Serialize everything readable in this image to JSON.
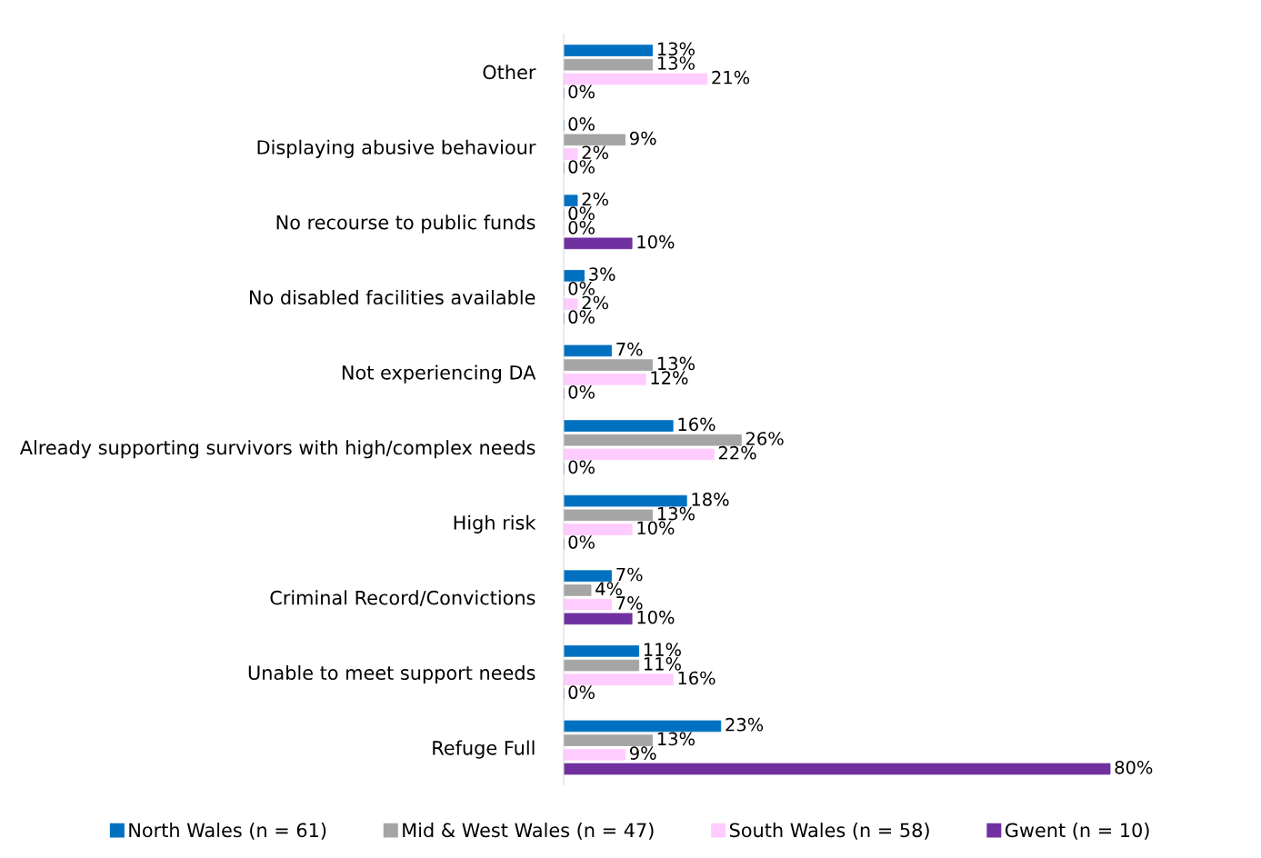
{
  "chart_data": {
    "type": "bar",
    "orientation": "horizontal",
    "legend": "bottom",
    "grid": false,
    "tick_labels": "y",
    "categories": [
      "Other",
      "Displaying abusive behaviour",
      "No recourse to public funds",
      "No disabled facilities available",
      "Not experiencing DA",
      "Already supporting survivors with high/complex needs",
      "High risk",
      "Criminal Record/Convictions",
      "Unable to meet support needs",
      "Refuge Full"
    ],
    "series": [
      {
        "name": "North Wales (n = 61)",
        "color": "#0070c0",
        "values": [
          13,
          0,
          2,
          3,
          7,
          16,
          18,
          7,
          11,
          23
        ],
        "value_labels": [
          "13%",
          "0%",
          "2%",
          "3%",
          "7%",
          "16%",
          "18%",
          "7%",
          "11%",
          "23%"
        ]
      },
      {
        "name": "Mid & West Wales (n = 47)",
        "color": "#a5a5a5",
        "values": [
          13,
          9,
          0,
          0,
          13,
          26,
          13,
          4,
          11,
          13
        ],
        "value_labels": [
          "13%",
          "9%",
          "0%",
          "0%",
          "13%",
          "26%",
          "13%",
          "4%",
          "11%",
          "13%"
        ]
      },
      {
        "name": "South Wales (n = 58)",
        "color": "#ffccff",
        "values": [
          21,
          2,
          0,
          2,
          12,
          22,
          10,
          7,
          16,
          9
        ],
        "value_labels": [
          "21%",
          "2%",
          "0%",
          "2%",
          "12%",
          "22%",
          "10%",
          "7%",
          "16%",
          "9%"
        ]
      },
      {
        "name": "Gwent (n = 10)",
        "color": "#7030a0",
        "values": [
          0,
          0,
          10,
          0,
          0,
          0,
          0,
          10,
          0,
          80
        ],
        "value_labels": [
          "0%",
          "0%",
          "10%",
          "0%",
          "0%",
          "0%",
          "0%",
          "10%",
          "0%",
          "80%"
        ]
      }
    ]
  }
}
